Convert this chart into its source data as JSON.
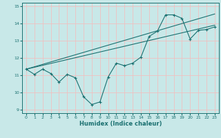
{
  "xlabel": "Humidex (Indice chaleur)",
  "bg_color": "#c8e8e8",
  "grid_color": "#f0c0c0",
  "line_color": "#1a7070",
  "xlim": [
    -0.5,
    23.5
  ],
  "ylim": [
    8.8,
    15.2
  ],
  "xticks": [
    0,
    1,
    2,
    3,
    4,
    5,
    6,
    7,
    8,
    9,
    10,
    11,
    12,
    13,
    14,
    15,
    16,
    17,
    18,
    19,
    20,
    21,
    22,
    23
  ],
  "yticks": [
    9,
    10,
    11,
    12,
    13,
    14,
    15
  ],
  "line1_x": [
    0,
    1,
    2,
    3,
    4,
    5,
    6,
    7,
    8,
    9,
    10,
    11,
    12,
    13,
    14,
    15,
    16,
    17,
    18,
    19,
    20,
    21,
    22,
    23
  ],
  "line1_y": [
    11.35,
    11.05,
    11.35,
    11.1,
    10.6,
    11.05,
    10.85,
    9.75,
    9.3,
    9.45,
    10.9,
    11.7,
    11.55,
    11.7,
    12.05,
    13.25,
    13.55,
    14.5,
    14.5,
    14.3,
    13.1,
    13.6,
    13.65,
    13.8
  ],
  "line2_x": [
    0,
    23
  ],
  "line2_y": [
    11.35,
    13.9
  ],
  "line3_x": [
    0,
    23
  ],
  "line3_y": [
    11.35,
    14.55
  ]
}
